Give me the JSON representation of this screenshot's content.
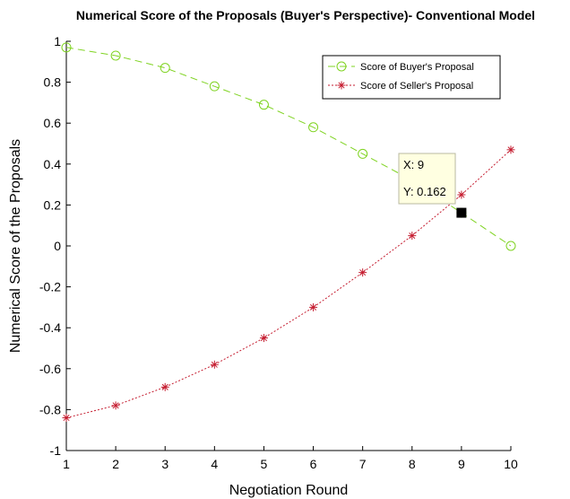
{
  "chart_data": {
    "type": "line",
    "title": "Numerical Score of the Proposals (Buyer's Perspective)- Conventional Model",
    "xlabel": "Negotiation Round",
    "ylabel": "Numerical Score of the Proposals",
    "xlim": [
      1,
      10
    ],
    "ylim": [
      -1,
      1
    ],
    "xticks": [
      "1",
      "2",
      "3",
      "4",
      "5",
      "6",
      "7",
      "8",
      "9",
      "10"
    ],
    "yticks": [
      "-1",
      "-0.8",
      "-0.6",
      "-0.4",
      "-0.2",
      "0",
      "0.2",
      "0.4",
      "0.6",
      "0.8",
      "1"
    ],
    "grid": false,
    "legend_position": "top-right",
    "x": [
      1,
      2,
      3,
      4,
      5,
      6,
      7,
      8,
      9,
      10
    ],
    "series": [
      {
        "name": "Score of Buyer's Proposal",
        "values": [
          0.97,
          0.93,
          0.87,
          0.78,
          0.69,
          0.58,
          0.45,
          0.32,
          0.162,
          0.0
        ],
        "color": "#7fd321",
        "marker": "circle",
        "line_style": "dashed"
      },
      {
        "name": "Score of Seller's Proposal",
        "values": [
          -0.84,
          -0.78,
          -0.69,
          -0.58,
          -0.45,
          -0.3,
          -0.13,
          0.05,
          0.25,
          0.47
        ],
        "color": "#c51d30",
        "marker": "asterisk",
        "line_style": "dotted"
      }
    ],
    "datatip": {
      "x": 9,
      "y": 0.162,
      "x_text": "X: 9",
      "y_text": "Y: 0.162"
    }
  }
}
